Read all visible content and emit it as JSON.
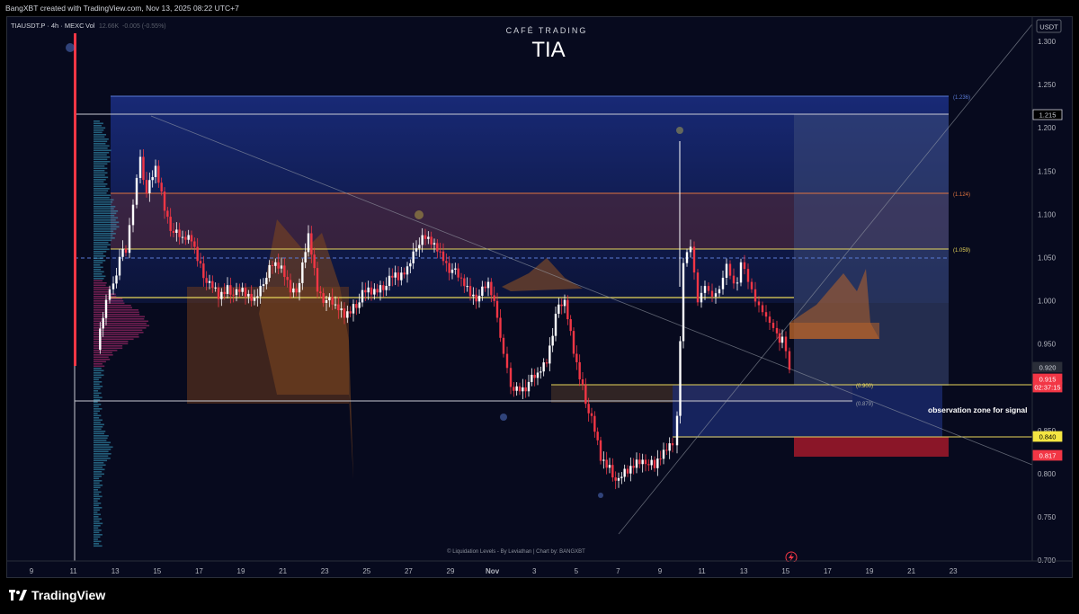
{
  "header": {
    "created_by": "BangXBT created with TradingView.com, Nov 13, 2025 08:22 UTC+7"
  },
  "symbol": {
    "name": "TIAUSDT.P · 4h · MEXC",
    "vol_label": "Vol",
    "vol_value": "12.66K",
    "vol_change": "-0.005 (-0.55%)"
  },
  "brand": {
    "subtitle": "CAFÉ TRADING",
    "title": "TIA"
  },
  "price_axis": {
    "currency": "USDT",
    "ticks": [
      "1.300",
      "1.250",
      "1.200",
      "1.150",
      "1.100",
      "1.050",
      "1.000",
      "0.950",
      "0.900",
      "0.850",
      "0.800",
      "0.750",
      "0.700"
    ],
    "labels": [
      {
        "text": "1.215",
        "bg": "#000000",
        "fg": "#d1d4dc",
        "border": "#d1d4dc"
      },
      {
        "text": "0.920",
        "bg": "#2a2e39",
        "fg": "#d1d4dc",
        "border": "#2a2e39"
      },
      {
        "text": "0.915",
        "bg": "#f23645",
        "fg": "#ffffff",
        "border": "#f23645"
      },
      {
        "text": "02:37:15",
        "bg": "#f23645",
        "fg": "#ffffff",
        "border": "#f23645"
      },
      {
        "text": "0.840",
        "bg": "#f5e642",
        "fg": "#000000",
        "border": "#f5e642"
      },
      {
        "text": "0.817",
        "bg": "#f23645",
        "fg": "#ffffff",
        "border": "#f23645"
      }
    ]
  },
  "time_axis": {
    "ticks": [
      "9",
      "11",
      "13",
      "15",
      "17",
      "19",
      "21",
      "23",
      "25",
      "27",
      "29",
      "Nov",
      "3",
      "5",
      "7",
      "9",
      "11",
      "13",
      "15",
      "17",
      "19",
      "21",
      "23"
    ]
  },
  "fib_levels": [
    {
      "label": "(1.236)",
      "color": "#5a7bd6"
    },
    {
      "label": "(1.124)",
      "color": "#e0743f"
    },
    {
      "label": "(1.059)",
      "color": "#e8d65a"
    },
    {
      "label": "(0.900)",
      "color": "#e8d65a"
    },
    {
      "label": "(0.879)",
      "color": "#9aa0aa"
    }
  ],
  "annotation": {
    "text": "observation zone for signal"
  },
  "credits": {
    "text": "© Liquidation Levels - By Leviathan | Chart by: BANGXBT"
  },
  "footer": {
    "brand": "TradingView"
  },
  "colors": {
    "background": "#070a1e",
    "bear": "#f23645",
    "bull": "#ffffff",
    "accent": "#f5e642",
    "zone_blue": "#1a2e7a",
    "zone_orange": "#b8642a"
  }
}
